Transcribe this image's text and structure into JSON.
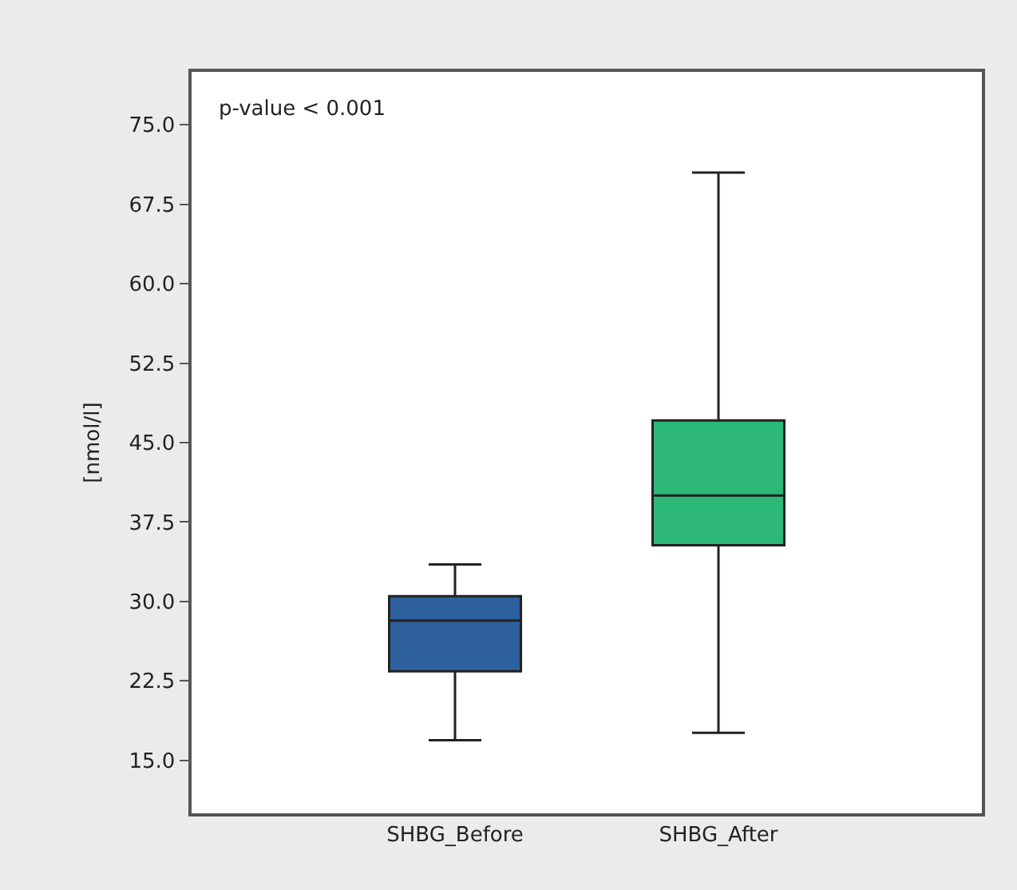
{
  "chart_data": {
    "type": "box",
    "ylabel": "[nmol/l]",
    "categories": [
      "SHBG_Before",
      "SHBG_After"
    ],
    "colors": [
      "#2e5f9e",
      "#2db87a"
    ],
    "boxes": [
      {
        "low": 16.9,
        "q1": 23.4,
        "median": 28.2,
        "q3": 30.5,
        "high": 33.5
      },
      {
        "low": 17.6,
        "q1": 35.3,
        "median": 40.0,
        "q3": 47.1,
        "high": 70.5
      }
    ],
    "ylim": [
      10,
      80
    ],
    "yticks": [
      {
        "value": 15,
        "label": "15.0"
      },
      {
        "value": 22.5,
        "label": "22.5"
      },
      {
        "value": 30,
        "label": "30.0"
      },
      {
        "value": 37.5,
        "label": "37.5"
      },
      {
        "value": 45,
        "label": "45.0"
      },
      {
        "value": 52.5,
        "label": "52.5"
      },
      {
        "value": 60,
        "label": "60.0"
      },
      {
        "value": 67.5,
        "label": "67.5"
      },
      {
        "value": 75,
        "label": "75.0"
      }
    ],
    "annotations": [
      "p-value < 0.001"
    ],
    "legend": false
  }
}
